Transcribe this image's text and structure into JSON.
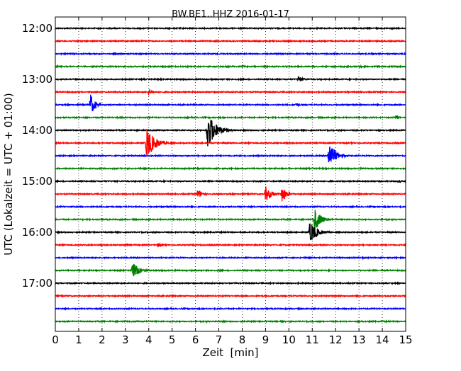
{
  "chart_data": {
    "type": "line",
    "title": "BW.BE1..HHZ 2016-01-17",
    "xlabel": "Zeit  [min]",
    "ylabel": "UTC (Lokalzeit = UTC + 01:00)",
    "xlim": [
      0,
      15
    ],
    "x_ticks": [
      0,
      1,
      2,
      3,
      4,
      5,
      6,
      7,
      8,
      9,
      10,
      11,
      12,
      13,
      14,
      15
    ],
    "y_ticks": [
      "12:00",
      "13:00",
      "14:00",
      "15:00",
      "16:00",
      "17:00"
    ],
    "grid": "vertical dotted",
    "colors": [
      "#000000",
      "#ff0000",
      "#0000ff",
      "#008000"
    ],
    "traces": [
      {
        "start": "12:00",
        "color": "#000000",
        "events": []
      },
      {
        "start": "12:15",
        "color": "#ff0000",
        "events": []
      },
      {
        "start": "12:30",
        "color": "#0000ff",
        "events": []
      },
      {
        "start": "12:45",
        "color": "#008000",
        "events": [
          {
            "t": 8.0,
            "amp": 0.06,
            "dur": 1.0
          },
          {
            "t": 13.0,
            "amp": 0.06,
            "dur": 1.0
          }
        ]
      },
      {
        "start": "13:00",
        "color": "#000000",
        "events": [
          {
            "t": 10.4,
            "amp": 0.2,
            "dur": 0.7
          }
        ]
      },
      {
        "start": "13:15",
        "color": "#ff0000",
        "events": [
          {
            "t": 4.0,
            "amp": 0.2,
            "dur": 0.5
          },
          {
            "t": 12.5,
            "amp": 0.05,
            "dur": 0.6
          }
        ]
      },
      {
        "start": "13:30",
        "color": "#0000ff",
        "events": [
          {
            "t": 1.5,
            "amp": 0.6,
            "dur": 0.6
          },
          {
            "t": 10.3,
            "amp": 0.12,
            "dur": 0.6
          }
        ]
      },
      {
        "start": "13:45",
        "color": "#008000",
        "events": [
          {
            "t": 14.6,
            "amp": 0.2,
            "dur": 0.3
          }
        ]
      },
      {
        "start": "14:00",
        "color": "#000000",
        "events": [
          {
            "t": 6.5,
            "amp": 1.0,
            "dur": 1.2
          }
        ]
      },
      {
        "start": "14:15",
        "color": "#ff0000",
        "events": [
          {
            "t": 3.9,
            "amp": 0.8,
            "dur": 1.2
          }
        ]
      },
      {
        "start": "14:30",
        "color": "#0000ff",
        "events": [
          {
            "t": 11.7,
            "amp": 0.7,
            "dur": 1.0
          }
        ]
      },
      {
        "start": "14:45",
        "color": "#008000",
        "events": []
      },
      {
        "start": "15:00",
        "color": "#000000",
        "events": [
          {
            "t": 14.7,
            "amp": 0.08,
            "dur": 0.4
          },
          {
            "t": 11.8,
            "amp": 0.04,
            "dur": 0.4
          }
        ]
      },
      {
        "start": "15:15",
        "color": "#ff0000",
        "events": [
          {
            "t": 6.1,
            "amp": 0.25,
            "dur": 0.7
          },
          {
            "t": 9.0,
            "amp": 0.4,
            "dur": 0.9
          },
          {
            "t": 9.7,
            "amp": 0.5,
            "dur": 0.6
          }
        ]
      },
      {
        "start": "15:30",
        "color": "#0000ff",
        "events": []
      },
      {
        "start": "15:45",
        "color": "#008000",
        "events": [
          {
            "t": 11.1,
            "amp": 0.6,
            "dur": 0.9
          }
        ]
      },
      {
        "start": "16:00",
        "color": "#000000",
        "events": [
          {
            "t": 10.9,
            "amp": 0.6,
            "dur": 1.0
          }
        ]
      },
      {
        "start": "16:15",
        "color": "#ff0000",
        "events": [
          {
            "t": 3.0,
            "amp": 0.1,
            "dur": 0.4
          },
          {
            "t": 4.4,
            "amp": 0.12,
            "dur": 0.6
          }
        ]
      },
      {
        "start": "16:30",
        "color": "#0000ff",
        "events": []
      },
      {
        "start": "16:45",
        "color": "#008000",
        "events": [
          {
            "t": 3.3,
            "amp": 0.45,
            "dur": 0.9
          }
        ]
      },
      {
        "start": "17:00",
        "color": "#000000",
        "events": []
      },
      {
        "start": "17:15",
        "color": "#ff0000",
        "events": []
      },
      {
        "start": "17:30",
        "color": "#0000ff",
        "events": []
      },
      {
        "start": "17:45",
        "color": "#008000",
        "events": []
      }
    ]
  }
}
